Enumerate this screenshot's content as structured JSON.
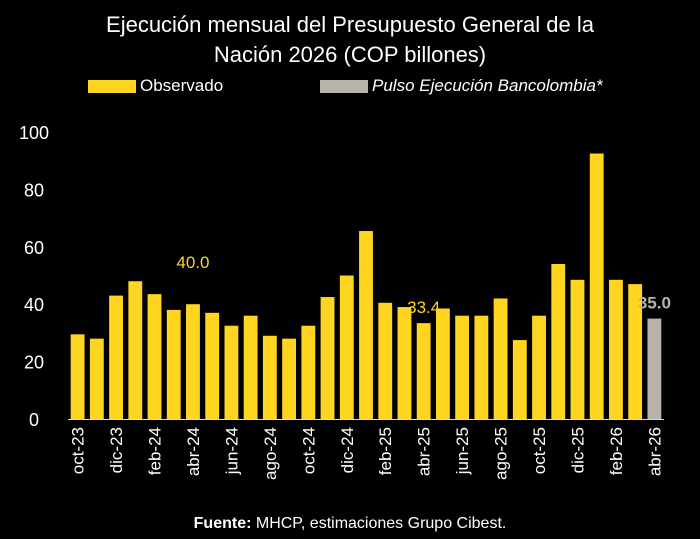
{
  "chart_data": {
    "type": "bar",
    "title_lines": [
      "Ejecución mensual del Presupuesto General de la",
      "Nación 2026 (COP billones)"
    ],
    "legend": [
      "Observado",
      "Pulso Ejecución Bancolombia*"
    ],
    "categories": [
      "oct-23",
      "nov-23",
      "dic-23",
      "ene-24",
      "feb-24",
      "mar-24",
      "abr-24",
      "may-24",
      "jun-24",
      "jul-24",
      "ago-24",
      "sep-24",
      "oct-24",
      "nov-24",
      "dic-24",
      "ene-25",
      "feb-25",
      "mar-25",
      "abr-25",
      "may-25",
      "jun-25",
      "jul-25",
      "ago-25",
      "sep-25",
      "oct-25",
      "nov-25",
      "dic-25",
      "ene-26",
      "feb-26",
      "mar-26",
      "abr-26"
    ],
    "tick_labels": [
      "oct-23",
      "dic-23",
      "feb-24",
      "abr-24",
      "jun-24",
      "ago-24",
      "oct-24",
      "dic-24",
      "feb-25",
      "abr-25",
      "jun-25",
      "ago-25",
      "oct-25",
      "dic-25",
      "feb-26",
      "abr-26"
    ],
    "series": [
      {
        "name": "Observado",
        "color": "#FFD520",
        "values": [
          29.5,
          28,
          43,
          48,
          43.5,
          38,
          40,
          37,
          32.5,
          36,
          29,
          28,
          32.5,
          42.5,
          50,
          65.5,
          40.5,
          39,
          33.4,
          38.5,
          36,
          36,
          42,
          27.5,
          36,
          54,
          48.5,
          92.5,
          48.5,
          47,
          null
        ]
      },
      {
        "name": "Pulso Ejecución Bancolombia*",
        "color": "#B8B3A8",
        "values": [
          null,
          null,
          null,
          null,
          null,
          null,
          null,
          null,
          null,
          null,
          null,
          null,
          null,
          null,
          null,
          null,
          null,
          null,
          null,
          null,
          null,
          null,
          null,
          null,
          null,
          null,
          null,
          null,
          null,
          null,
          35.0
        ]
      }
    ],
    "annotations": [
      {
        "text": "40.0",
        "category": "abr-24",
        "value": 40.0,
        "color": "#FFD520"
      },
      {
        "text": "33.4",
        "category": "abr-25",
        "value": 33.4,
        "color": "#FFD520"
      },
      {
        "text": "35.0",
        "category": "abr-26",
        "value": 35.0,
        "color": "#B8B3A8"
      }
    ],
    "ylim": [
      0,
      100
    ],
    "yticks": [
      0,
      20,
      40,
      60,
      80,
      100
    ],
    "grid": false
  },
  "source": {
    "label": "Fuente:",
    "text": " MHCP, estimaciones Grupo Cibest."
  }
}
